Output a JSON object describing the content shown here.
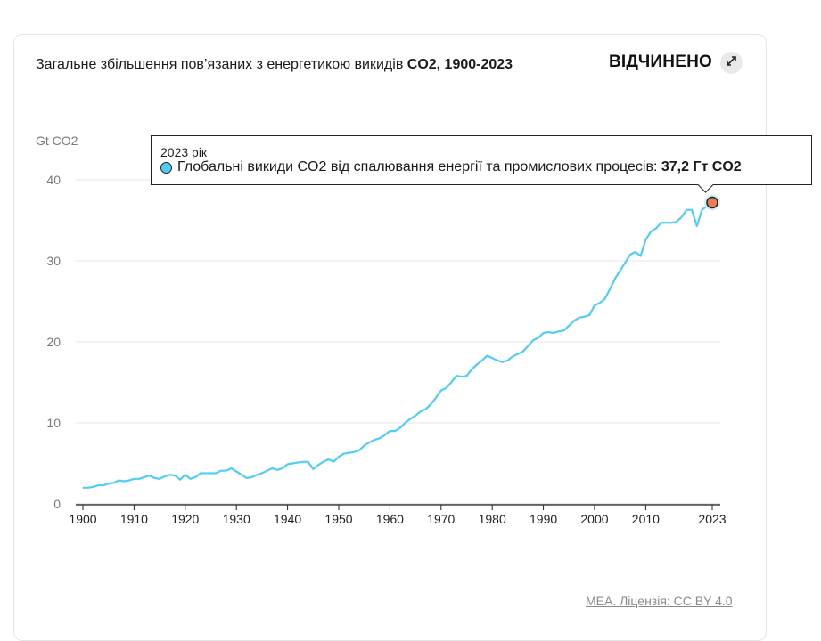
{
  "header": {
    "title_regular": "Загальне збільшення пов’язаних з енергетикою викидів ",
    "title_bold": "CO2, 1900-2023",
    "open_label": "ВІДЧИНЕНО",
    "expand_icon": "expand-arrows-icon"
  },
  "tooltip": {
    "year": "2023 рік",
    "series": "Глобальні викиди CO2 від спалювання енергії та промислових процесів:",
    "value": "37,2 Гт CO2"
  },
  "source": "МЕА. Ліцензія: CC BY 4.0",
  "colors": {
    "line": "#50cdf5",
    "highlight": "#f07a5a",
    "grid": "#e6e6e6",
    "axis_text": "#7a7a7a"
  },
  "chart_data": {
    "type": "line",
    "ylabel": "Gt CO2",
    "ylim": [
      0,
      40
    ],
    "yticks": [
      0,
      10,
      20,
      30,
      40
    ],
    "xlim": [
      1900,
      2023
    ],
    "xticks": [
      "1900",
      "1910",
      "1920",
      "1930",
      "1940",
      "1950",
      "1960",
      "1970",
      "1980",
      "1990",
      "2000",
      "2010",
      "2023"
    ],
    "grid": true,
    "series": [
      {
        "values": [
          [
            1900,
            2.0
          ],
          [
            1901,
            2.0
          ],
          [
            1902,
            2.1
          ],
          [
            1903,
            2.3
          ],
          [
            1904,
            2.3
          ],
          [
            1905,
            2.5
          ],
          [
            1906,
            2.6
          ],
          [
            1907,
            2.9
          ],
          [
            1908,
            2.8
          ],
          [
            1909,
            2.9
          ],
          [
            1910,
            3.1
          ],
          [
            1911,
            3.1
          ],
          [
            1912,
            3.3
          ],
          [
            1913,
            3.5
          ],
          [
            1914,
            3.2
          ],
          [
            1915,
            3.1
          ],
          [
            1916,
            3.4
          ],
          [
            1917,
            3.6
          ],
          [
            1918,
            3.5
          ],
          [
            1919,
            3.0
          ],
          [
            1920,
            3.6
          ],
          [
            1921,
            3.1
          ],
          [
            1922,
            3.3
          ],
          [
            1923,
            3.8
          ],
          [
            1924,
            3.8
          ],
          [
            1925,
            3.8
          ],
          [
            1926,
            3.8
          ],
          [
            1927,
            4.1
          ],
          [
            1928,
            4.1
          ],
          [
            1929,
            4.4
          ],
          [
            1930,
            4.0
          ],
          [
            1931,
            3.6
          ],
          [
            1932,
            3.2
          ],
          [
            1933,
            3.3
          ],
          [
            1934,
            3.6
          ],
          [
            1935,
            3.8
          ],
          [
            1936,
            4.1
          ],
          [
            1937,
            4.4
          ],
          [
            1938,
            4.2
          ],
          [
            1939,
            4.4
          ],
          [
            1940,
            4.9
          ],
          [
            1941,
            5.0
          ],
          [
            1942,
            5.1
          ],
          [
            1943,
            5.2
          ],
          [
            1944,
            5.2
          ],
          [
            1945,
            4.3
          ],
          [
            1946,
            4.8
          ],
          [
            1947,
            5.2
          ],
          [
            1948,
            5.5
          ],
          [
            1949,
            5.2
          ],
          [
            1950,
            5.8
          ],
          [
            1951,
            6.2
          ],
          [
            1952,
            6.3
          ],
          [
            1953,
            6.4
          ],
          [
            1954,
            6.6
          ],
          [
            1955,
            7.2
          ],
          [
            1956,
            7.6
          ],
          [
            1957,
            7.9
          ],
          [
            1958,
            8.1
          ],
          [
            1959,
            8.5
          ],
          [
            1960,
            9.0
          ],
          [
            1961,
            9.0
          ],
          [
            1962,
            9.4
          ],
          [
            1963,
            10.0
          ],
          [
            1964,
            10.5
          ],
          [
            1965,
            10.9
          ],
          [
            1966,
            11.4
          ],
          [
            1967,
            11.7
          ],
          [
            1968,
            12.3
          ],
          [
            1969,
            13.1
          ],
          [
            1970,
            14.0
          ],
          [
            1971,
            14.3
          ],
          [
            1972,
            15.0
          ],
          [
            1973,
            15.8
          ],
          [
            1974,
            15.7
          ],
          [
            1975,
            15.8
          ],
          [
            1976,
            16.6
          ],
          [
            1977,
            17.2
          ],
          [
            1978,
            17.7
          ],
          [
            1979,
            18.3
          ],
          [
            1980,
            18.0
          ],
          [
            1981,
            17.7
          ],
          [
            1982,
            17.5
          ],
          [
            1983,
            17.7
          ],
          [
            1984,
            18.2
          ],
          [
            1985,
            18.5
          ],
          [
            1986,
            18.8
          ],
          [
            1987,
            19.5
          ],
          [
            1988,
            20.2
          ],
          [
            1989,
            20.5
          ],
          [
            1990,
            21.1
          ],
          [
            1991,
            21.2
          ],
          [
            1992,
            21.1
          ],
          [
            1993,
            21.3
          ],
          [
            1994,
            21.4
          ],
          [
            1995,
            22.0
          ],
          [
            1996,
            22.6
          ],
          [
            1997,
            23.0
          ],
          [
            1998,
            23.1
          ],
          [
            1999,
            23.3
          ],
          [
            2000,
            24.5
          ],
          [
            2001,
            24.8
          ],
          [
            2002,
            25.3
          ],
          [
            2003,
            26.5
          ],
          [
            2004,
            27.8
          ],
          [
            2005,
            28.8
          ],
          [
            2006,
            29.8
          ],
          [
            2007,
            30.8
          ],
          [
            2008,
            31.1
          ],
          [
            2009,
            30.6
          ],
          [
            2010,
            32.6
          ],
          [
            2011,
            33.6
          ],
          [
            2012,
            34.0
          ],
          [
            2013,
            34.7
          ],
          [
            2014,
            34.7
          ],
          [
            2015,
            34.7
          ],
          [
            2016,
            34.8
          ],
          [
            2017,
            35.4
          ],
          [
            2018,
            36.3
          ],
          [
            2019,
            36.3
          ],
          [
            2020,
            34.3
          ],
          [
            2021,
            36.3
          ],
          [
            2022,
            36.8
          ],
          [
            2023,
            37.2
          ]
        ]
      }
    ],
    "highlight": {
      "x": 2023,
      "y": 37.2
    }
  }
}
